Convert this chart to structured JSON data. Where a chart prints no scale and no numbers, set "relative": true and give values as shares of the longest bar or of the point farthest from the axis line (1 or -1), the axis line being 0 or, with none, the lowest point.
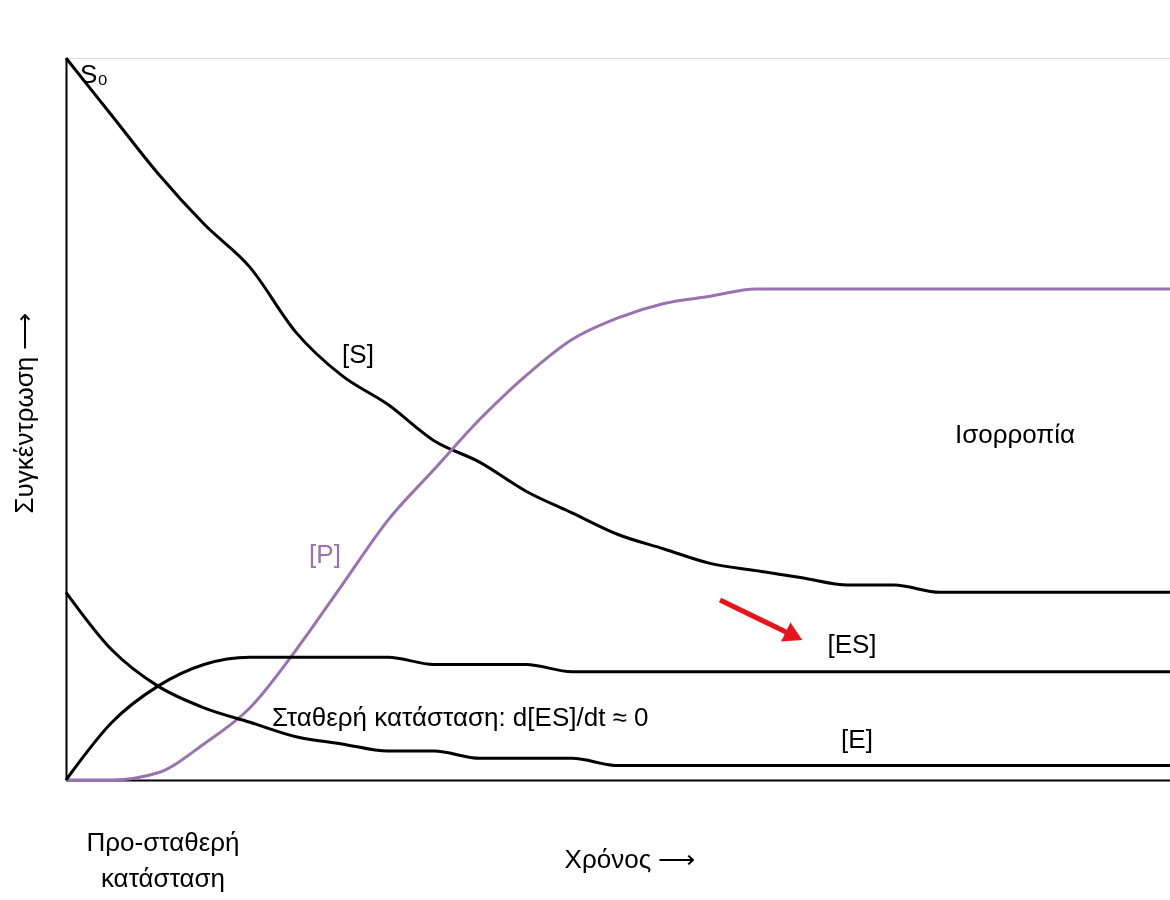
{
  "chart_data": {
    "type": "line",
    "relative": true,
    "xlabel": "Χρόνος ⟶",
    "ylabel": "Συγκέντρωση ⟶",
    "categories": [
      null,
      null,
      null,
      null,
      null,
      null,
      null,
      null,
      null,
      null,
      null,
      null,
      null,
      null,
      null,
      null,
      null,
      null,
      null,
      null,
      null,
      null,
      null,
      null,
      null
    ],
    "series": [
      {
        "name": "[S]",
        "color": "#000000",
        "values": [
          1.0,
          0.92,
          0.84,
          0.77,
          0.71,
          0.62,
          0.56,
          0.52,
          0.47,
          0.44,
          0.4,
          0.37,
          0.34,
          0.32,
          0.3,
          0.29,
          0.28,
          0.27,
          0.27,
          0.26,
          0.26,
          0.26,
          0.26,
          0.26,
          0.26
        ]
      },
      {
        "name": "[P]",
        "color": "#9b72b0",
        "values": [
          0,
          0.0,
          0.01,
          0.05,
          0.1,
          0.18,
          0.27,
          0.36,
          0.43,
          0.5,
          0.56,
          0.61,
          0.64,
          0.66,
          0.67,
          0.68,
          0.68,
          0.68,
          0.68,
          0.68,
          0.68,
          0.68,
          0.68,
          0.68,
          0.68
        ]
      },
      {
        "name": "[ES]",
        "color": "#000000",
        "values": [
          0,
          0.08,
          0.13,
          0.16,
          0.17,
          0.17,
          0.17,
          0.17,
          0.16,
          0.16,
          0.16,
          0.15,
          0.15,
          0.15,
          0.15,
          0.15,
          0.15,
          0.15,
          0.15,
          0.15,
          0.15,
          0.15,
          0.15,
          0.15,
          0.15
        ]
      },
      {
        "name": "[E]",
        "color": "#000000",
        "values": [
          0.26,
          0.18,
          0.13,
          0.1,
          0.08,
          0.06,
          0.05,
          0.04,
          0.04,
          0.03,
          0.03,
          0.03,
          0.02,
          0.02,
          0.02,
          0.02,
          0.02,
          0.02,
          0.02,
          0.02,
          0.02,
          0.02,
          0.02,
          0.02,
          0.02
        ]
      }
    ],
    "annotations": [
      "S₀",
      "Ισορροπία",
      "Σταθερή κατάσταση: d[ES]/dt ≈ 0",
      "Προ-σταθερή κατάσταση"
    ],
    "grid": false,
    "legend": false,
    "marker": "none",
    "line_style": "solid"
  }
}
